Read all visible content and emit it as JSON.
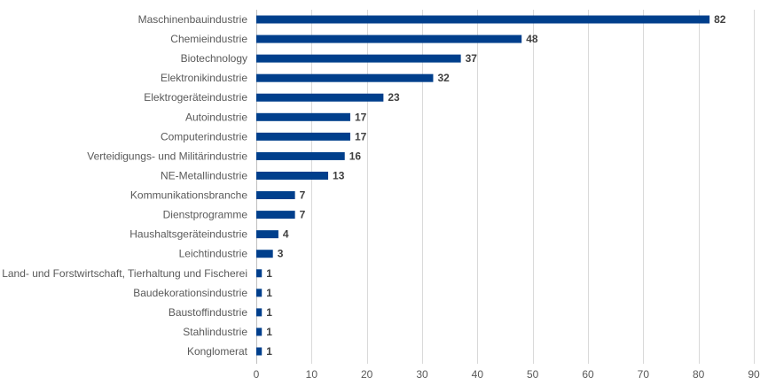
{
  "chart_data": {
    "type": "bar",
    "orientation": "horizontal",
    "title": "",
    "xlabel": "",
    "ylabel": "",
    "categories": [
      "Maschinenbauindustrie",
      "Chemieindustrie",
      "Biotechnology",
      "Elektronikindustrie",
      "Elektrogeräteindustrie",
      "Autoindustrie",
      "Computerindustrie",
      "Verteidigungs- und Militärindustrie",
      "NE-Metallindustrie",
      "Kommunikationsbranche",
      "Dienstprogramme",
      "Haushaltsgeräteindustrie",
      "Leichtindustrie",
      "Land- und Forstwirtschaft, Tierhaltung und Fischerei",
      "Baudekorationsindustrie",
      "Baustoffindustrie",
      "Stahlindustrie",
      "Konglomerat"
    ],
    "values": [
      82,
      48,
      37,
      32,
      23,
      17,
      17,
      16,
      13,
      7,
      7,
      4,
      3,
      1,
      1,
      1,
      1,
      1
    ],
    "xlim": [
      0,
      90
    ],
    "xticks": [
      0,
      10,
      20,
      30,
      40,
      50,
      60,
      70,
      80,
      90
    ],
    "grid": "vertical",
    "data_labels": true,
    "legend": "none",
    "bar_color": "#003f8c"
  }
}
